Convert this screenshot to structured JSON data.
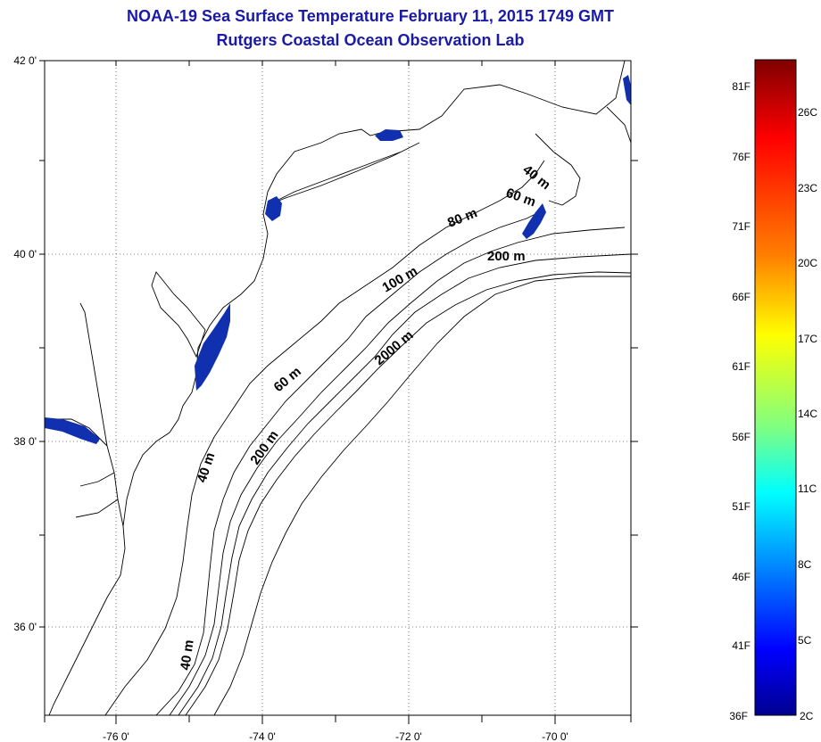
{
  "title": {
    "line1": "NOAA-19 Sea Surface Temperature February 11, 2015 1749 GMT",
    "line2": "Rutgers Coastal Ocean Observation Lab"
  },
  "map": {
    "lon_ticks": [
      {
        "value": -76,
        "label": "-76 0'"
      },
      {
        "value": -74,
        "label": "-74 0'"
      },
      {
        "value": -72,
        "label": "-72 0'"
      },
      {
        "value": -70,
        "label": "-70 0'"
      }
    ],
    "lat_ticks": [
      {
        "value": 42,
        "label": "42 0'"
      },
      {
        "value": 40,
        "label": "40 0'"
      },
      {
        "value": 38,
        "label": "38 0'"
      },
      {
        "value": 36,
        "label": "36 0'"
      }
    ],
    "lon_range": [
      -77,
      -69
    ],
    "lat_range": [
      35,
      42
    ],
    "grid": "dotted",
    "contour_labels": [
      "40 m",
      "60 m",
      "80 m",
      "200 m",
      "100 m",
      "2000 m",
      "60 m",
      "40 m",
      "200 m",
      "40 m"
    ]
  },
  "colorbar": {
    "fahrenheit_labels": [
      "81F",
      "76F",
      "71F",
      "66F",
      "61F",
      "56F",
      "51F",
      "46F",
      "41F",
      "36F"
    ],
    "celsius_labels": [
      "26C",
      "23C",
      "20C",
      "17C",
      "14C",
      "11C",
      "8C",
      "5C",
      "2C"
    ],
    "gradient_colors": [
      "#7f0000",
      "#ff0000",
      "#ff8000",
      "#ffff00",
      "#80ff80",
      "#00ffff",
      "#0080ff",
      "#0000ff",
      "#00008f"
    ]
  },
  "colors": {
    "title": "#1a1aa8",
    "cold_water": "#1030b0"
  }
}
